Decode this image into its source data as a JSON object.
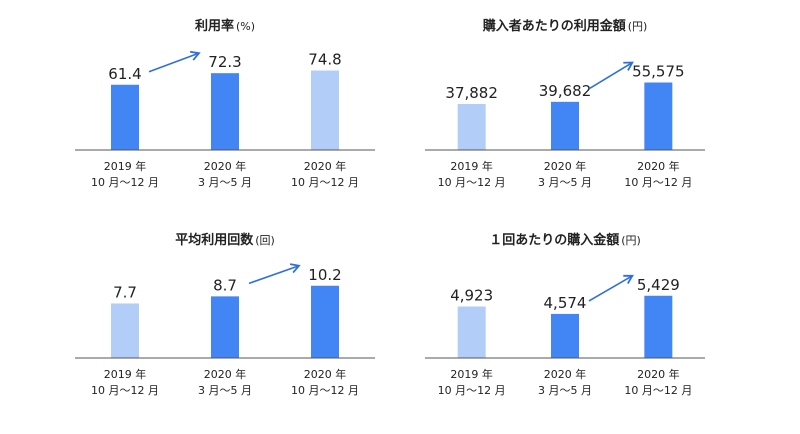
{
  "palette": {
    "light": "#b2cdf8",
    "dark": "#4285f4",
    "axis": "#555555",
    "arrow": "#2f6fe0",
    "text": "#222222"
  },
  "chart_data": [
    {
      "type": "bar",
      "title": "利用率",
      "unit": "(%)",
      "categories": [
        [
          "2019 年",
          "10 月〜12 月"
        ],
        [
          "2020 年",
          "3 月〜5 月"
        ],
        [
          "2020 年",
          "10 月〜12 月"
        ]
      ],
      "values": [
        61.4,
        72.3,
        74.8
      ],
      "value_labels": [
        "61.4",
        "72.3",
        "74.8"
      ],
      "bar_colors": [
        "dark",
        "dark",
        "light"
      ],
      "arrow_between": [
        0,
        1
      ],
      "ylim": [
        0,
        80
      ]
    },
    {
      "type": "bar",
      "title": "購入者あたりの利用金額",
      "unit": "(円)",
      "categories": [
        [
          "2019 年",
          "10 月〜12 月"
        ],
        [
          "2020 年",
          "3 月〜5 月"
        ],
        [
          "2020 年",
          "10 月〜12 月"
        ]
      ],
      "values": [
        37882,
        39682,
        55575
      ],
      "value_labels": [
        "37,882",
        "39,682",
        "55,575"
      ],
      "bar_colors": [
        "light",
        "dark",
        "dark"
      ],
      "arrow_between": [
        1,
        2
      ],
      "ylim": [
        0,
        70000
      ]
    },
    {
      "type": "bar",
      "title": "平均利用回数",
      "unit": "(回)",
      "categories": [
        [
          "2019 年",
          "10 月〜12 月"
        ],
        [
          "2020 年",
          "3 月〜5 月"
        ],
        [
          "2020 年",
          "10 月〜12 月"
        ]
      ],
      "values": [
        7.7,
        8.7,
        10.2
      ],
      "value_labels": [
        "7.7",
        "8.7",
        "10.2"
      ],
      "bar_colors": [
        "light",
        "dark",
        "dark"
      ],
      "arrow_between": [
        1,
        2
      ],
      "ylim": [
        0,
        12
      ]
    },
    {
      "type": "bar",
      "title": "１回あたりの購入金額",
      "unit": "(円)",
      "categories": [
        [
          "2019 年",
          "10 月〜12 月"
        ],
        [
          "2020 年",
          "3 月〜5 月"
        ],
        [
          "2020 年",
          "10 月〜12 月"
        ]
      ],
      "values": [
        4923,
        4574,
        5429
      ],
      "value_labels": [
        "4,923",
        "4,574",
        "5,429"
      ],
      "bar_colors": [
        "light",
        "dark",
        "dark"
      ],
      "arrow_between": [
        1,
        2
      ],
      "ylim": [
        2500,
        6500
      ]
    }
  ]
}
